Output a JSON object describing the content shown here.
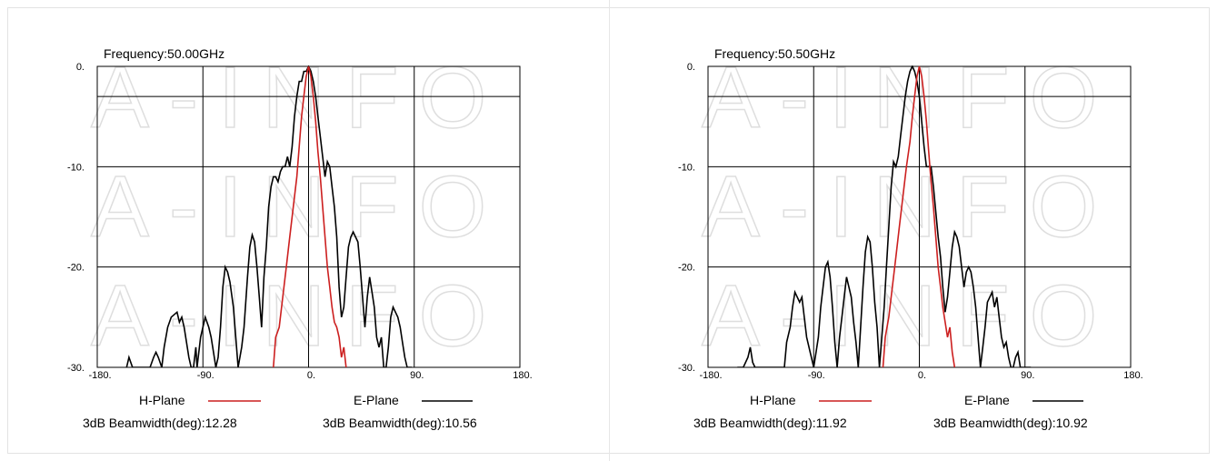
{
  "colors": {
    "h_plane": "#cc1f1f",
    "e_plane": "#000000",
    "grid": "#000000",
    "watermark": "#dedede"
  },
  "watermark": "A-INFO",
  "chart_data": [
    {
      "type": "line",
      "title": "Frequency:50.00GHz",
      "xlim": [
        -180,
        180
      ],
      "ylim": [
        -30,
        0
      ],
      "x_ticks": [
        "-180.",
        "-90.",
        "0.",
        "90.",
        "180."
      ],
      "y_ticks": [
        "0.",
        "-10.",
        "-20.",
        "-30."
      ],
      "x_tick_values": [
        -180,
        -90,
        0,
        90,
        180
      ],
      "y_tick_values": [
        0,
        -10,
        -20,
        -30
      ],
      "y_grid_extra": [
        -3
      ],
      "grid": true,
      "legend": [
        {
          "label": "H-Plane",
          "beamwidth": "3dB Beamwidth(deg):12.28"
        },
        {
          "label": "E-Plane",
          "beamwidth": "3dB Beamwidth(deg):10.56"
        }
      ],
      "series": [
        {
          "name": "H-Plane",
          "x": [
            -30,
            -28,
            -25,
            -22,
            -19,
            -16,
            -13,
            -10,
            -8,
            -6,
            -4,
            -2,
            0,
            2,
            4,
            6,
            8,
            10,
            12,
            14,
            16,
            18,
            20,
            22,
            24,
            26,
            28,
            30,
            32
          ],
          "y": [
            -30,
            -27,
            -26,
            -23,
            -20,
            -17,
            -14,
            -11,
            -8,
            -5,
            -3,
            -1,
            0,
            -1,
            -3,
            -5.5,
            -8.5,
            -11,
            -14,
            -17,
            -20,
            -22,
            -24,
            -25.5,
            -26,
            -27,
            -29,
            -28,
            -30
          ]
        },
        {
          "name": "E-Plane",
          "x": [
            -155,
            -153,
            -150,
            -140,
            -135,
            -132,
            -130,
            -128,
            -125,
            -123,
            -120,
            -117,
            -112,
            -110,
            -108,
            -106,
            -104,
            -102,
            -100,
            -98,
            -96,
            -95,
            -92,
            -88,
            -85,
            -83,
            -81,
            -79,
            -77,
            -75,
            -73,
            -71,
            -69,
            -67,
            -64,
            -62,
            -60,
            -57,
            -55,
            -52,
            -50,
            -48,
            -46,
            -44,
            -42,
            -40,
            -38,
            -36,
            -34,
            -32,
            -30,
            -28,
            -26,
            -24,
            -22,
            -20,
            -18,
            -16,
            -14,
            -12,
            -10,
            -8,
            -6,
            -4,
            -2,
            0,
            2,
            4,
            6,
            8,
            10,
            12,
            14,
            16,
            18,
            20,
            22,
            24,
            26,
            28,
            30,
            32,
            34,
            36,
            38,
            40,
            42,
            44,
            46,
            48,
            50,
            52,
            54,
            56,
            58,
            60,
            62,
            64,
            66,
            68,
            70,
            72,
            74,
            76,
            78,
            80,
            82,
            84,
            86,
            88
          ],
          "y": [
            -30,
            -29,
            -30,
            -30,
            -30,
            -29,
            -28.5,
            -29,
            -30,
            -28,
            -26,
            -25,
            -24.5,
            -25.5,
            -25,
            -26,
            -27.5,
            -29,
            -30,
            -30,
            -28,
            -30,
            -27,
            -25,
            -26,
            -27,
            -28.5,
            -30,
            -29,
            -26,
            -22,
            -20,
            -20.5,
            -21.5,
            -24,
            -27,
            -30,
            -28,
            -26,
            -21,
            -18,
            -16.8,
            -17.5,
            -20,
            -23,
            -26,
            -21,
            -18,
            -14,
            -12,
            -11,
            -11,
            -11.5,
            -10.5,
            -10,
            -10,
            -9,
            -10,
            -8,
            -5,
            -3,
            -1.5,
            -1.5,
            -0.5,
            -0.5,
            0,
            -0.5,
            -1.5,
            -3,
            -5,
            -7,
            -9,
            -11,
            -9.5,
            -10,
            -12,
            -14,
            -17,
            -22,
            -25,
            -24,
            -21,
            -18,
            -17,
            -16.5,
            -17,
            -17.5,
            -20,
            -23,
            -26,
            -23,
            -21,
            -22.5,
            -24,
            -27,
            -28,
            -27,
            -30,
            -30,
            -28,
            -25,
            -24,
            -24.5,
            -25,
            -26,
            -27.5,
            -29,
            -30,
            -30,
            -30
          ]
        }
      ]
    },
    {
      "type": "line",
      "title": "Frequency:50.50GHz",
      "xlim": [
        -180,
        180
      ],
      "ylim": [
        -30,
        0
      ],
      "x_ticks": [
        "-180.",
        "-90.",
        "0.",
        "90.",
        "180."
      ],
      "y_ticks": [
        "0.",
        "-10.",
        "-20.",
        "-30."
      ],
      "x_tick_values": [
        -180,
        -90,
        0,
        90,
        180
      ],
      "y_tick_values": [
        0,
        -10,
        -20,
        -30
      ],
      "y_grid_extra": [
        -3
      ],
      "grid": true,
      "legend": [
        {
          "label": "H-Plane",
          "beamwidth": "3dB Beamwidth(deg):11.92"
        },
        {
          "label": "E-Plane",
          "beamwidth": "3dB Beamwidth(deg):10.92"
        }
      ],
      "series": [
        {
          "name": "H-Plane",
          "x": [
            -31,
            -29,
            -26,
            -23,
            -20,
            -17,
            -14,
            -11,
            -8,
            -6,
            -4,
            -2,
            0,
            2,
            4,
            6,
            8,
            10,
            12,
            14,
            16,
            18,
            20,
            22,
            24,
            26,
            28,
            30
          ],
          "y": [
            -30,
            -27,
            -25,
            -22,
            -19,
            -16,
            -13,
            -10,
            -7.5,
            -5,
            -3,
            -1,
            0,
            -1,
            -3,
            -5.5,
            -8.5,
            -11.5,
            -14,
            -17,
            -20,
            -22,
            -24,
            -25.5,
            -27,
            -26,
            -28.5,
            -30
          ]
        },
        {
          "name": "E-Plane",
          "x": [
            -155,
            -150,
            -146,
            -144,
            -142,
            -140,
            -138,
            -135,
            -132,
            -130,
            -128,
            -125,
            -120,
            -115,
            -113,
            -110,
            -108,
            -106,
            -104,
            -102,
            -100,
            -98,
            -96,
            -94,
            -90,
            -86,
            -84,
            -82,
            -80,
            -78,
            -76,
            -74,
            -72,
            -70,
            -68,
            -66,
            -64,
            -62,
            -60,
            -58,
            -56,
            -54,
            -52,
            -50,
            -48,
            -46,
            -44,
            -42,
            -40,
            -38,
            -36,
            -34,
            -32,
            -30,
            -28,
            -26,
            -24,
            -22,
            -20,
            -18,
            -16,
            -14,
            -12,
            -10,
            -8,
            -6,
            -4,
            -2,
            0,
            2,
            4,
            6,
            8,
            10,
            12,
            14,
            16,
            18,
            20,
            22,
            24,
            26,
            28,
            30,
            32,
            34,
            36,
            38,
            40,
            42,
            44,
            46,
            48,
            50,
            52,
            54,
            56,
            58,
            60,
            62,
            64,
            66,
            68,
            70,
            72,
            74,
            76,
            78,
            80,
            82,
            84,
            86,
            88,
            90,
            92,
            95
          ],
          "y": [
            -30,
            -30,
            -29,
            -28,
            -29.5,
            -30,
            -30,
            -30,
            -30,
            -30,
            -30,
            -30,
            -30,
            -30,
            -27.5,
            -26,
            -24,
            -22.5,
            -23,
            -23.5,
            -23,
            -25,
            -27,
            -28,
            -30,
            -27,
            -24,
            -22,
            -20,
            -19.5,
            -21,
            -24,
            -27.5,
            -30,
            -27,
            -25,
            -23,
            -21,
            -22,
            -23,
            -25.5,
            -27.5,
            -30,
            -26,
            -22,
            -18.5,
            -17,
            -17.5,
            -20,
            -23.5,
            -26,
            -30,
            -27,
            -24,
            -20,
            -16,
            -12,
            -9.5,
            -10,
            -9,
            -7,
            -5,
            -3,
            -1.5,
            -0.5,
            0,
            -0.5,
            -1.5,
            -3,
            -5.5,
            -8,
            -10,
            -10,
            -10,
            -12,
            -14.5,
            -17,
            -19,
            -22,
            -24.5,
            -23,
            -20.5,
            -18,
            -16.5,
            -17,
            -18,
            -20,
            -22,
            -20.5,
            -20,
            -20.5,
            -22,
            -24,
            -27,
            -30,
            -28,
            -26,
            -23.5,
            -23,
            -22.5,
            -24,
            -23,
            -25,
            -27,
            -28,
            -27.5,
            -29,
            -30,
            -30,
            -29,
            -28.5,
            -30,
            -30,
            -30,
            -30,
            -30
          ]
        }
      ]
    }
  ]
}
